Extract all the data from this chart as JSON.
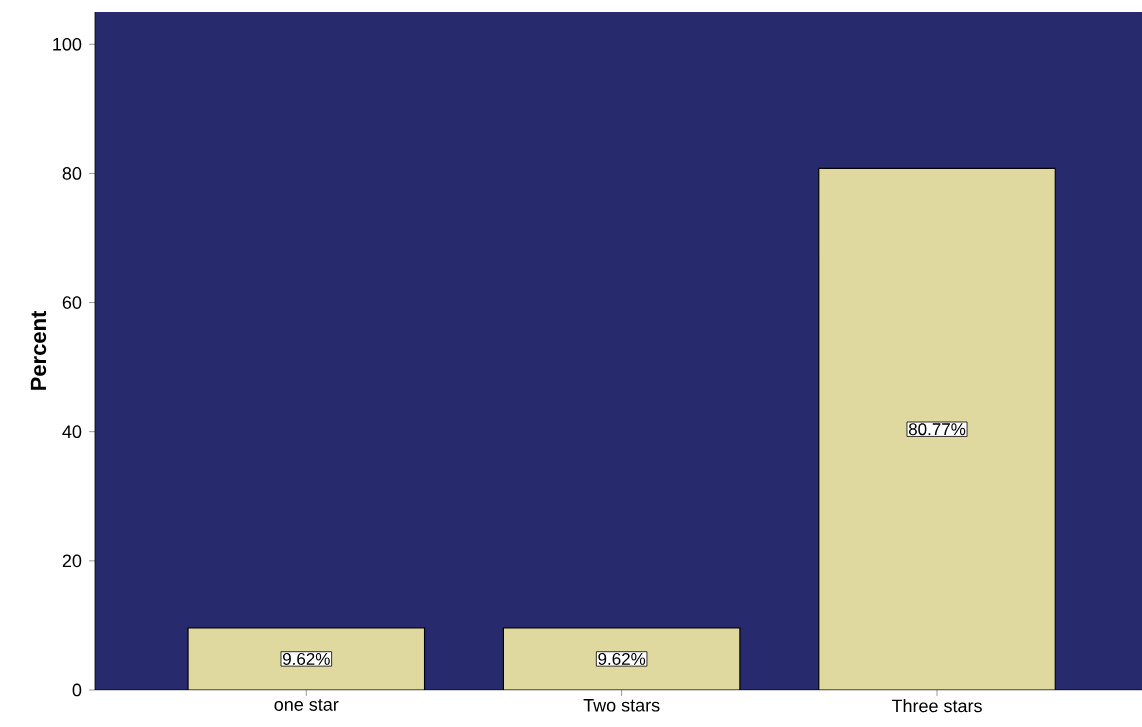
{
  "chart_data": {
    "type": "bar",
    "ylabel": "Percent",
    "categories": [
      "one star",
      "Two stars",
      "Three stars"
    ],
    "values": [
      9.62,
      9.62,
      80.77
    ],
    "value_labels": [
      "9.62%",
      "9.62%",
      "80.77%"
    ],
    "color": "#e0d99f",
    "ylim": [
      0,
      105
    ],
    "yticks": [
      0,
      20,
      40,
      60,
      80,
      100
    ],
    "grid": false
  }
}
